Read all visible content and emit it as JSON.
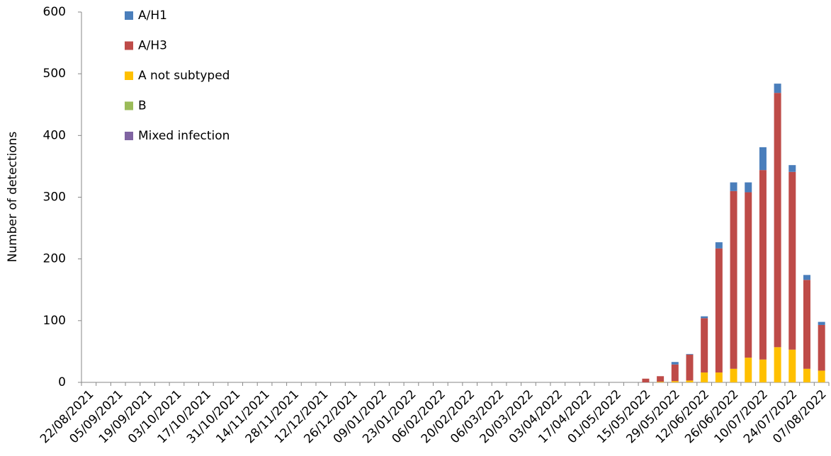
{
  "chart_data": {
    "type": "stacked_bar",
    "y_label": "Number of detections",
    "categories": [
      "22/08/2021",
      null,
      "05/09/2021",
      null,
      "19/09/2021",
      null,
      "03/10/2021",
      null,
      "17/10/2021",
      null,
      "31/10/2021",
      null,
      "14/11/2021",
      null,
      "28/11/2021",
      null,
      "12/12/2021",
      null,
      "26/12/2021",
      null,
      "09/01/2022",
      null,
      "23/01/2022",
      null,
      "06/02/2022",
      null,
      "20/02/2022",
      null,
      "06/03/2022",
      null,
      "20/03/2022",
      null,
      "03/04/2022",
      null,
      "17/04/2022",
      null,
      "01/05/2022",
      null,
      "15/05/2022",
      null,
      "29/05/2022",
      null,
      "12/06/2022",
      null,
      "26/06/2022",
      null,
      "10/07/2022",
      null,
      "24/07/2022",
      null,
      "07/08/2022"
    ],
    "series": [
      {
        "name": "A/H1",
        "color": "#4a7ebb",
        "values": [
          0,
          0,
          0,
          0,
          0,
          0,
          0,
          0,
          0,
          0,
          0,
          0,
          0,
          0,
          0,
          0,
          0,
          0,
          0,
          0,
          0,
          0,
          0,
          0,
          0,
          0,
          0,
          0,
          0,
          0,
          0,
          0,
          0,
          0,
          0,
          0,
          0,
          0,
          0,
          0,
          4,
          1,
          3,
          10,
          14,
          16,
          37,
          15,
          11,
          8,
          5
        ]
      },
      {
        "name": "A/H3",
        "color": "#be4b48",
        "values": [
          0,
          0,
          0,
          0,
          0,
          0,
          0,
          0,
          0,
          0,
          0,
          0,
          0,
          0,
          0,
          0,
          0,
          0,
          0,
          0,
          0,
          0,
          0,
          0,
          0,
          0,
          0,
          0,
          0,
          0,
          0,
          0,
          0,
          0,
          0,
          0,
          0,
          0,
          6,
          9,
          27,
          42,
          88,
          201,
          288,
          268,
          307,
          412,
          288,
          144,
          74
        ]
      },
      {
        "name": "A not subtyped",
        "color": "#ffc000",
        "values": [
          0,
          0,
          0,
          0,
          0,
          0,
          0,
          0,
          0,
          0,
          0,
          0,
          0,
          0,
          0,
          0,
          0,
          0,
          0,
          0,
          0,
          0,
          0,
          0,
          0,
          0,
          0,
          0,
          0,
          0,
          0,
          0,
          0,
          0,
          0,
          0,
          0,
          0,
          0,
          1,
          2,
          3,
          16,
          16,
          22,
          40,
          37,
          57,
          53,
          22,
          19
        ]
      },
      {
        "name": "B",
        "color": "#9bbb59",
        "values": [
          0,
          0,
          0,
          0,
          0,
          0,
          0,
          0,
          0,
          0,
          0,
          0,
          0,
          0,
          0,
          0,
          0,
          0,
          0,
          0,
          0,
          0,
          0,
          0,
          0,
          0,
          0,
          0,
          0,
          0,
          0,
          0,
          0,
          0,
          0,
          0,
          0,
          0,
          0,
          0,
          0,
          0,
          0,
          0,
          0,
          0,
          0,
          0,
          0,
          0,
          0
        ]
      },
      {
        "name": "Mixed infection",
        "color": "#8064a2",
        "values": [
          0,
          0,
          0,
          0,
          0,
          0,
          0,
          0,
          0,
          0,
          0,
          0,
          0,
          0,
          0,
          0,
          0,
          0,
          0,
          0,
          0,
          0,
          0,
          0,
          0,
          0,
          0,
          0,
          0,
          0,
          0,
          0,
          0,
          0,
          0,
          0,
          0,
          0,
          0,
          0,
          0,
          0,
          0,
          0,
          0,
          0,
          0,
          0,
          0,
          0,
          0
        ]
      }
    ],
    "ylim": [
      0,
      600
    ],
    "yticks": [
      0,
      100,
      200,
      300,
      400,
      500,
      600
    ],
    "grid": false,
    "legend": "top-left"
  }
}
